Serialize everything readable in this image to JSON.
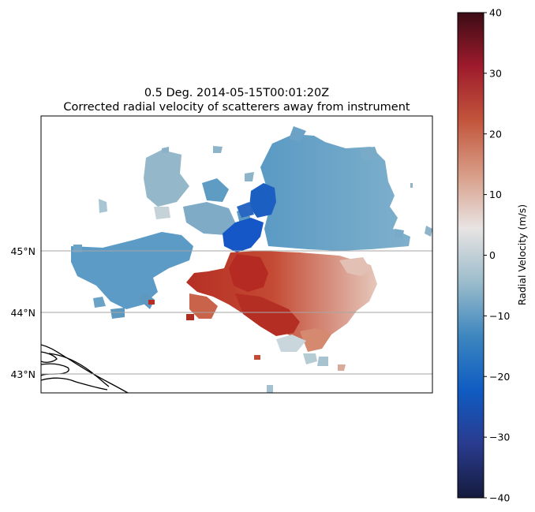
{
  "chart_data": {
    "type": "heatmap",
    "subtype": "radar-ppi-map",
    "title_line1": "0.5 Deg. 2014-05-15T00:01:20Z",
    "title_line2": "Corrected radial velocity of scatterers away from instrument",
    "y_ticks": [
      {
        "value": 45,
        "label": "45°N"
      },
      {
        "value": 44,
        "label": "44°N"
      },
      {
        "value": 43,
        "label": "43°N"
      }
    ],
    "x_ticks": [],
    "ylim": [
      42.7,
      47.2
    ],
    "gridlines": "latitude only",
    "colorbar": {
      "label": "Radial Velocity (m/s)",
      "range": [
        -40,
        40
      ],
      "ticks": [
        40,
        30,
        20,
        10,
        0,
        -10,
        -20,
        -30,
        -40
      ],
      "colormap": "balance (diverging dark navy → blue → light grey → red → dark maroon)",
      "stops": [
        "#151b3d",
        "#2a3b8f",
        "#0f5cc2",
        "#3d86bf",
        "#9bbccb",
        "#e8e4e3",
        "#d89c86",
        "#c2553c",
        "#9e1b2c",
        "#3c0c15"
      ]
    },
    "velocity_pattern": {
      "north_half": "negative (toward radar), -10 to -22 m/s, strongest about -25 m/s near radar",
      "south_half": "positive (away from radar), +10 to +25 m/s",
      "radar_center_latitude": 45.0
    }
  }
}
